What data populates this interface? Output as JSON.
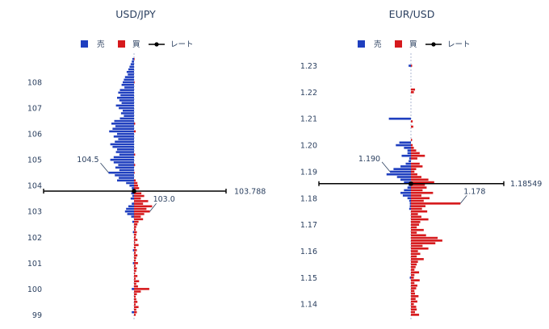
{
  "legend": {
    "sell": "売",
    "buy": "買",
    "rate": "レート"
  },
  "colors": {
    "sell": "#1f3fbf",
    "buy": "#d6191c",
    "rate": "#000000",
    "text": "#2a3f5f"
  },
  "chart_data": [
    {
      "type": "bar",
      "orientation": "horizontal",
      "title": "USD/JPY",
      "ylim": [
        98.95,
        109.0
      ],
      "y_ticks": [
        99,
        100,
        101,
        102,
        103,
        104,
        105,
        106,
        107,
        108
      ],
      "rate": 103.788,
      "rate_label": "103.788",
      "annotations": [
        {
          "text": "104.5",
          "y": 104.5,
          "side": "left"
        },
        {
          "text": "103.0",
          "y": 103.0,
          "side": "right"
        }
      ],
      "bin": 0.1,
      "sell": [
        [
          108.9,
          0.3
        ],
        [
          108.8,
          0.4
        ],
        [
          108.7,
          0.6
        ],
        [
          108.6,
          0.8
        ],
        [
          108.5,
          1.0
        ],
        [
          108.4,
          1.3
        ],
        [
          108.3,
          1.1
        ],
        [
          108.2,
          1.6
        ],
        [
          108.1,
          1.8
        ],
        [
          108.0,
          2.0
        ],
        [
          107.9,
          2.2
        ],
        [
          107.8,
          1.7
        ],
        [
          107.7,
          2.5
        ],
        [
          107.6,
          2.8
        ],
        [
          107.5,
          2.4
        ],
        [
          107.4,
          3.0
        ],
        [
          107.3,
          2.6
        ],
        [
          107.2,
          2.2
        ],
        [
          107.1,
          3.2
        ],
        [
          107.0,
          2.7
        ],
        [
          106.9,
          2.0
        ],
        [
          106.8,
          2.3
        ],
        [
          106.7,
          1.8
        ],
        [
          106.6,
          2.5
        ],
        [
          106.5,
          3.5
        ],
        [
          106.4,
          4.0
        ],
        [
          106.3,
          3.3
        ],
        [
          106.2,
          3.8
        ],
        [
          106.1,
          4.4
        ],
        [
          106.0,
          3.0
        ],
        [
          105.9,
          3.6
        ],
        [
          105.8,
          2.8
        ],
        [
          105.7,
          3.4
        ],
        [
          105.6,
          4.2
        ],
        [
          105.5,
          3.8
        ],
        [
          105.4,
          3.0
        ],
        [
          105.3,
          3.2
        ],
        [
          105.2,
          2.6
        ],
        [
          105.1,
          3.6
        ],
        [
          105.0,
          4.2
        ],
        [
          104.9,
          3.6
        ],
        [
          104.8,
          2.8
        ],
        [
          104.7,
          3.3
        ],
        [
          104.6,
          2.6
        ],
        [
          104.5,
          4.5
        ],
        [
          104.4,
          3.4
        ],
        [
          104.3,
          2.7
        ],
        [
          104.2,
          3.0
        ],
        [
          104.1,
          1.4
        ],
        [
          104.0,
          0.8
        ],
        [
          103.9,
          0.4
        ],
        [
          103.8,
          0.2
        ],
        [
          103.7,
          0.5
        ],
        [
          103.6,
          0.3
        ],
        [
          103.5,
          0.6
        ],
        [
          103.3,
          0.4
        ],
        [
          103.2,
          1.0
        ],
        [
          103.1,
          1.4
        ],
        [
          103.0,
          1.6
        ],
        [
          102.9,
          1.2
        ],
        [
          102.8,
          0.5
        ],
        [
          102.6,
          0.3
        ],
        [
          102.2,
          0.2
        ],
        [
          101.5,
          0.2
        ],
        [
          101.0,
          0.2
        ],
        [
          100.0,
          0.4
        ],
        [
          99.1,
          0.4
        ]
      ],
      "buy": [
        [
          108.9,
          0.1
        ],
        [
          108.0,
          0.1
        ],
        [
          106.4,
          0.2
        ],
        [
          106.1,
          0.3
        ],
        [
          105.2,
          0.2
        ],
        [
          104.8,
          0.2
        ],
        [
          104.5,
          0.1
        ],
        [
          104.2,
          0.3
        ],
        [
          104.1,
          0.6
        ],
        [
          104.0,
          0.7
        ],
        [
          103.9,
          0.9
        ],
        [
          103.7,
          1.3
        ],
        [
          103.6,
          1.8
        ],
        [
          103.5,
          1.2
        ],
        [
          103.4,
          2.5
        ],
        [
          103.3,
          1.6
        ],
        [
          103.2,
          3.2
        ],
        [
          103.1,
          2.2
        ],
        [
          103.0,
          2.8
        ],
        [
          102.9,
          1.8
        ],
        [
          102.8,
          1.2
        ],
        [
          102.7,
          1.6
        ],
        [
          102.6,
          0.8
        ],
        [
          102.5,
          0.6
        ],
        [
          102.4,
          0.4
        ],
        [
          102.3,
          0.3
        ],
        [
          102.2,
          0.5
        ],
        [
          102.1,
          0.4
        ],
        [
          102.0,
          0.3
        ],
        [
          101.9,
          0.6
        ],
        [
          101.8,
          0.2
        ],
        [
          101.7,
          0.8
        ],
        [
          101.6,
          0.3
        ],
        [
          101.5,
          0.5
        ],
        [
          101.4,
          0.3
        ],
        [
          101.3,
          0.6
        ],
        [
          101.2,
          0.4
        ],
        [
          101.1,
          0.3
        ],
        [
          101.0,
          0.7
        ],
        [
          100.9,
          0.3
        ],
        [
          100.8,
          0.5
        ],
        [
          100.7,
          0.4
        ],
        [
          100.6,
          0.2
        ],
        [
          100.5,
          0.6
        ],
        [
          100.4,
          0.3
        ],
        [
          100.3,
          0.9
        ],
        [
          100.2,
          0.4
        ],
        [
          100.1,
          0.7
        ],
        [
          100.0,
          2.7
        ],
        [
          99.9,
          1.2
        ],
        [
          99.8,
          0.5
        ],
        [
          99.7,
          0.3
        ],
        [
          99.6,
          0.4
        ],
        [
          99.5,
          0.6
        ],
        [
          99.4,
          0.3
        ],
        [
          99.3,
          0.8
        ],
        [
          99.2,
          0.4
        ],
        [
          99.1,
          0.5
        ],
        [
          99.0,
          0.3
        ]
      ]
    },
    {
      "type": "bar",
      "orientation": "horizontal",
      "title": "EUR/USD",
      "ylim": [
        1.1355,
        1.2335
      ],
      "y_ticks": [
        1.14,
        1.15,
        1.16,
        1.17,
        1.18,
        1.19,
        1.2,
        1.21,
        1.22,
        1.23
      ],
      "y_tick_labels": [
        "1.14",
        "1.15",
        "1.16",
        "1.17",
        "1.18",
        "1.19",
        "1.20",
        "1.21",
        "1.22",
        "1.23"
      ],
      "rate": 1.18549,
      "rate_label": "1.18549",
      "annotations": [
        {
          "text": "1.190",
          "y": 1.19,
          "side": "left"
        },
        {
          "text": "1.178",
          "y": 1.178,
          "side": "right"
        }
      ],
      "bin": 0.001,
      "sell": [
        [
          1.23,
          0.4
        ],
        [
          1.21,
          3.8
        ],
        [
          1.201,
          2.0
        ],
        [
          1.2,
          2.6
        ],
        [
          1.199,
          1.2
        ],
        [
          1.198,
          0.6
        ],
        [
          1.197,
          0.6
        ],
        [
          1.196,
          1.6
        ],
        [
          1.195,
          0.3
        ],
        [
          1.194,
          0.4
        ],
        [
          1.193,
          0.9
        ],
        [
          1.192,
          1.8
        ],
        [
          1.191,
          3.0
        ],
        [
          1.19,
          3.6
        ],
        [
          1.189,
          4.2
        ],
        [
          1.188,
          2.4
        ],
        [
          1.187,
          1.8
        ],
        [
          1.186,
          1.2
        ],
        [
          1.185,
          0.4
        ],
        [
          1.184,
          0.6
        ],
        [
          1.183,
          1.2
        ],
        [
          1.182,
          1.8
        ],
        [
          1.181,
          1.4
        ],
        [
          1.18,
          0.6
        ],
        [
          1.179,
          0.3
        ],
        [
          1.178,
          0.2
        ],
        [
          1.177,
          0.2
        ],
        [
          1.176,
          0.3
        ],
        [
          1.15,
          0.2
        ]
      ],
      "buy": [
        [
          1.23,
          0.2
        ],
        [
          1.221,
          0.7
        ],
        [
          1.22,
          0.5
        ],
        [
          1.209,
          0.3
        ],
        [
          1.207,
          0.4
        ],
        [
          1.202,
          0.2
        ],
        [
          1.2,
          0.3
        ],
        [
          1.199,
          0.5
        ],
        [
          1.198,
          0.9
        ],
        [
          1.197,
          1.5
        ],
        [
          1.196,
          2.4
        ],
        [
          1.195,
          1.1
        ],
        [
          1.193,
          1.5
        ],
        [
          1.192,
          2.0
        ],
        [
          1.191,
          0.9
        ],
        [
          1.19,
          0.6
        ],
        [
          1.189,
          1.1
        ],
        [
          1.188,
          1.8
        ],
        [
          1.187,
          3.0
        ],
        [
          1.186,
          4.0
        ],
        [
          1.185,
          2.4
        ],
        [
          1.184,
          2.7
        ],
        [
          1.183,
          2.0
        ],
        [
          1.182,
          3.8
        ],
        [
          1.181,
          1.8
        ],
        [
          1.18,
          3.2
        ],
        [
          1.179,
          2.2
        ],
        [
          1.178,
          8.5
        ],
        [
          1.177,
          2.5
        ],
        [
          1.176,
          1.9
        ],
        [
          1.175,
          2.8
        ],
        [
          1.174,
          1.2
        ],
        [
          1.173,
          1.8
        ],
        [
          1.172,
          3.0
        ],
        [
          1.171,
          1.6
        ],
        [
          1.17,
          1.4
        ],
        [
          1.169,
          1.0
        ],
        [
          1.168,
          2.2
        ],
        [
          1.167,
          1.0
        ],
        [
          1.166,
          2.6
        ],
        [
          1.165,
          4.6
        ],
        [
          1.164,
          5.4
        ],
        [
          1.163,
          4.2
        ],
        [
          1.162,
          2.0
        ],
        [
          1.161,
          3.0
        ],
        [
          1.16,
          1.2
        ],
        [
          1.159,
          1.6
        ],
        [
          1.158,
          1.0
        ],
        [
          1.157,
          2.2
        ],
        [
          1.156,
          1.2
        ],
        [
          1.155,
          1.0
        ],
        [
          1.154,
          0.8
        ],
        [
          1.153,
          0.6
        ],
        [
          1.152,
          1.4
        ],
        [
          1.151,
          0.6
        ],
        [
          1.15,
          0.5
        ],
        [
          1.149,
          1.5
        ],
        [
          1.148,
          0.6
        ],
        [
          1.147,
          1.1
        ],
        [
          1.146,
          0.9
        ],
        [
          1.145,
          0.6
        ],
        [
          1.144,
          0.7
        ],
        [
          1.143,
          1.3
        ],
        [
          1.142,
          0.8
        ],
        [
          1.141,
          1.1
        ],
        [
          1.14,
          0.5
        ],
        [
          1.139,
          0.9
        ],
        [
          1.138,
          1.0
        ],
        [
          1.137,
          0.7
        ],
        [
          1.136,
          1.4
        ]
      ]
    }
  ]
}
